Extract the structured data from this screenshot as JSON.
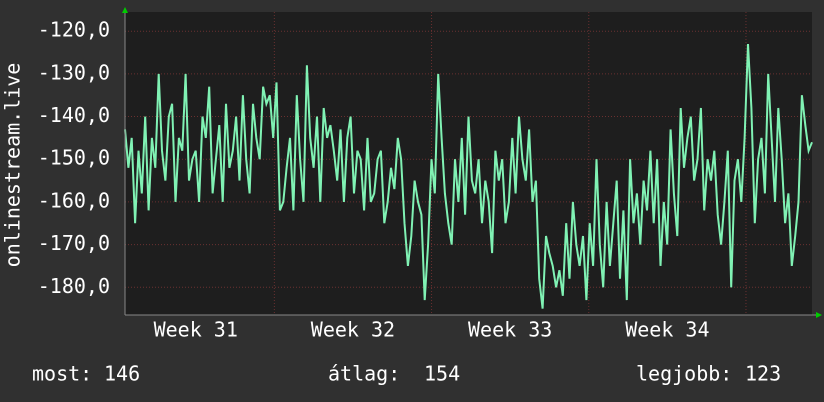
{
  "chart_data": {
    "type": "line",
    "ylabel": "onlinestream.live",
    "color": "#80f2b4",
    "grid": true,
    "ylim": [
      -186.5,
      -115.5
    ],
    "yticks": [
      {
        "value": -120,
        "label": "-120,0"
      },
      {
        "value": -130,
        "label": "-130,0"
      },
      {
        "value": -140,
        "label": "-140,0"
      },
      {
        "value": -150,
        "label": "-150,0"
      },
      {
        "value": -160,
        "label": "-160,0"
      },
      {
        "value": -170,
        "label": "-170,0"
      },
      {
        "value": -180,
        "label": "-180,0"
      }
    ],
    "xlim": [
      30.55,
      34.92
    ],
    "xticks": [
      {
        "value": 31,
        "label": "Week 31"
      },
      {
        "value": 32,
        "label": "Week 32"
      },
      {
        "value": 33,
        "label": "Week 33"
      },
      {
        "value": 34,
        "label": "Week 34"
      }
    ],
    "values": [
      -143,
      -152,
      -145,
      -165,
      -148,
      -158,
      -140,
      -162,
      -145,
      -152,
      -130,
      -148,
      -155,
      -140,
      -137,
      -160,
      -145,
      -148,
      -130,
      -155,
      -150,
      -148,
      -160,
      -140,
      -145,
      -133,
      -158,
      -150,
      -142,
      -160,
      -137,
      -152,
      -148,
      -140,
      -155,
      -135,
      -150,
      -158,
      -137,
      -145,
      -150,
      -133,
      -137,
      -135,
      -145,
      -132,
      -162,
      -160,
      -152,
      -145,
      -162,
      -135,
      -150,
      -160,
      -128,
      -145,
      -152,
      -140,
      -160,
      -138,
      -145,
      -142,
      -148,
      -155,
      -143,
      -160,
      -145,
      -140,
      -158,
      -148,
      -150,
      -162,
      -145,
      -160,
      -158,
      -150,
      -148,
      -165,
      -160,
      -152,
      -157,
      -145,
      -150,
      -165,
      -175,
      -168,
      -155,
      -160,
      -163,
      -183,
      -170,
      -150,
      -158,
      -130,
      -145,
      -158,
      -165,
      -170,
      -150,
      -160,
      -145,
      -163,
      -140,
      -155,
      -158,
      -150,
      -165,
      -155,
      -160,
      -172,
      -148,
      -155,
      -150,
      -165,
      -160,
      -145,
      -158,
      -140,
      -150,
      -155,
      -143,
      -160,
      -155,
      -178,
      -185,
      -168,
      -172,
      -175,
      -180,
      -176,
      -182,
      -165,
      -178,
      -160,
      -170,
      -175,
      -168,
      -183,
      -165,
      -175,
      -150,
      -170,
      -180,
      -160,
      -175,
      -165,
      -155,
      -178,
      -162,
      -183,
      -150,
      -165,
      -158,
      -170,
      -155,
      -162,
      -148,
      -165,
      -150,
      -175,
      -160,
      -170,
      -143,
      -158,
      -168,
      -138,
      -152,
      -145,
      -140,
      -155,
      -150,
      -138,
      -162,
      -150,
      -155,
      -148,
      -163,
      -170,
      -160,
      -148,
      -180,
      -155,
      -150,
      -160,
      -145,
      -123,
      -138,
      -165,
      -150,
      -145,
      -158,
      -130,
      -145,
      -160,
      -138,
      -150,
      -165,
      -158,
      -175,
      -168,
      -160,
      -135,
      -142,
      -148,
      -146
    ]
  },
  "stats": [
    {
      "label": "most:",
      "value": 146
    },
    {
      "label": "átlag:",
      "value": 154
    },
    {
      "label": "legjobb:",
      "value": 123
    }
  ]
}
